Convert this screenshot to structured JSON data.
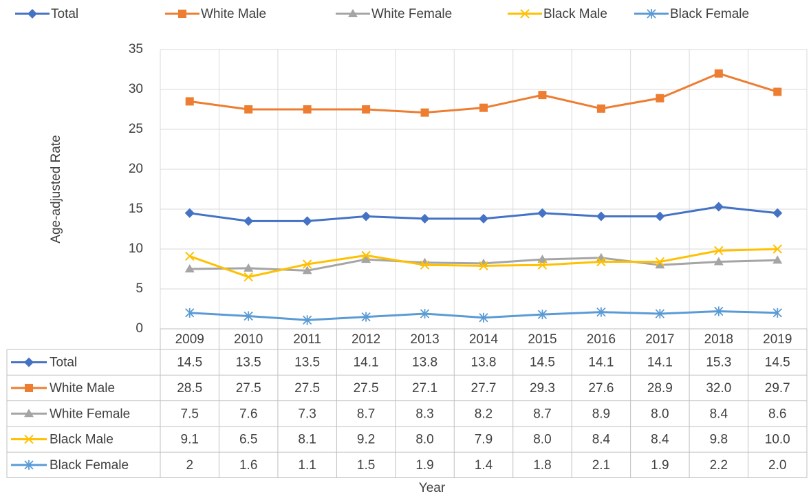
{
  "chart_data": {
    "type": "line",
    "x_label": "Year",
    "y_label": "Age-adjusted Rate",
    "categories": [
      "2009",
      "2010",
      "2011",
      "2012",
      "2013",
      "2014",
      "2015",
      "2016",
      "2017",
      "2018",
      "2019"
    ],
    "ylim": [
      0,
      35
    ],
    "yticks": [
      0,
      5,
      10,
      15,
      20,
      25,
      30,
      35
    ],
    "grid": true,
    "legend": "top",
    "data_table": true,
    "series": [
      {
        "name": "Total",
        "color": "#4472c4",
        "marker": "diamond",
        "values": [
          14.5,
          13.5,
          13.5,
          14.1,
          13.8,
          13.8,
          14.5,
          14.1,
          14.1,
          15.3,
          14.5
        ],
        "value_labels": [
          "14.5",
          "13.5",
          "13.5",
          "14.1",
          "13.8",
          "13.8",
          "14.5",
          "14.1",
          "14.1",
          "15.3",
          "14.5"
        ]
      },
      {
        "name": "White Male",
        "color": "#ed7d31",
        "marker": "square",
        "values": [
          28.5,
          27.5,
          27.5,
          27.5,
          27.1,
          27.7,
          29.3,
          27.6,
          28.9,
          32.0,
          29.7
        ],
        "value_labels": [
          "28.5",
          "27.5",
          "27.5",
          "27.5",
          "27.1",
          "27.7",
          "29.3",
          "27.6",
          "28.9",
          "32.0",
          "29.7"
        ]
      },
      {
        "name": "White Female",
        "color": "#a5a5a5",
        "marker": "triangle",
        "values": [
          7.5,
          7.6,
          7.3,
          8.7,
          8.3,
          8.2,
          8.7,
          8.9,
          8.0,
          8.4,
          8.6
        ],
        "value_labels": [
          "7.5",
          "7.6",
          "7.3",
          "8.7",
          "8.3",
          "8.2",
          "8.7",
          "8.9",
          "8.0",
          "8.4",
          "8.6"
        ]
      },
      {
        "name": "Black Male",
        "color": "#ffc000",
        "marker": "x",
        "values": [
          9.1,
          6.5,
          8.1,
          9.2,
          8.0,
          7.9,
          8.0,
          8.4,
          8.4,
          9.8,
          10.0
        ],
        "value_labels": [
          "9.1",
          "6.5",
          "8.1",
          "9.2",
          "8.0",
          "7.9",
          "8.0",
          "8.4",
          "8.4",
          "9.8",
          "10.0"
        ]
      },
      {
        "name": "Black Female",
        "color": "#5b9bd5",
        "marker": "asterisk",
        "values": [
          2,
          1.6,
          1.1,
          1.5,
          1.9,
          1.4,
          1.8,
          2.1,
          1.9,
          2.2,
          2.0
        ],
        "value_labels": [
          "2",
          "1.6",
          "1.1",
          "1.5",
          "1.9",
          "1.4",
          "1.8",
          "2.1",
          "1.9",
          "2.2",
          "2.0"
        ]
      }
    ]
  }
}
